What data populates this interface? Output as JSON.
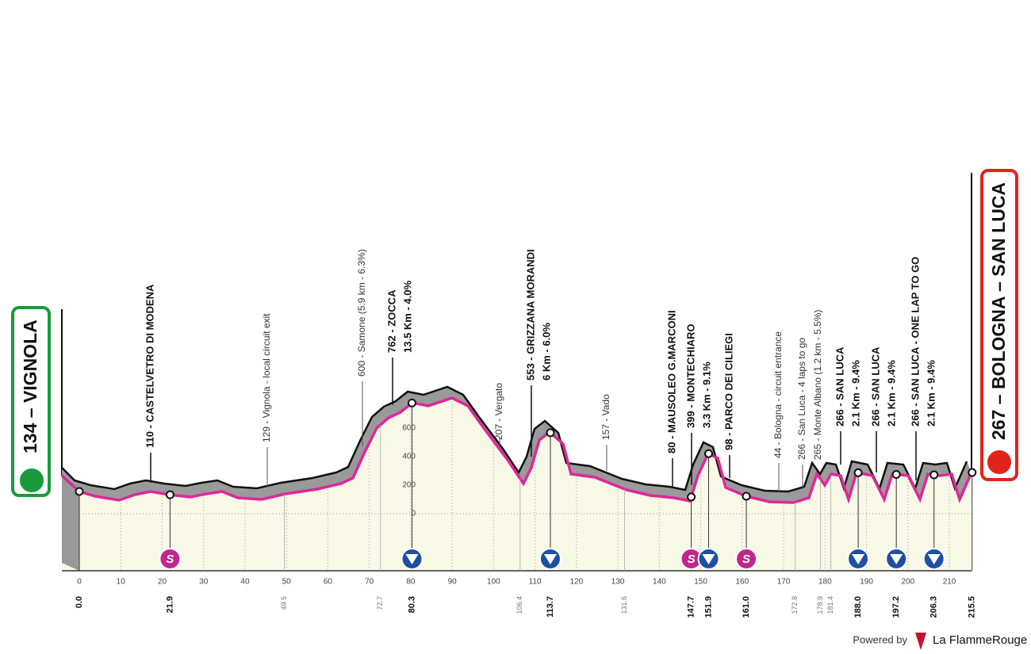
{
  "start": {
    "name": "134 – VIGNOLA"
  },
  "finish": {
    "name": "267 – BOLOGNA – SAN LUCA"
  },
  "km_ticks": [
    0,
    10,
    20,
    30,
    40,
    50,
    60,
    70,
    80,
    90,
    100,
    110,
    120,
    130,
    140,
    150,
    160,
    170,
    180,
    190,
    200,
    210
  ],
  "elevation_ticks": [
    0,
    200,
    400,
    600
  ],
  "distances": [
    {
      "km": "0.0",
      "style": "major"
    },
    {
      "km": "21.9",
      "style": "major",
      "marker": "sprint"
    },
    {
      "km": "49.5",
      "style": "minor"
    },
    {
      "km": "72.7",
      "style": "minor"
    },
    {
      "km": "80.3",
      "style": "major",
      "marker": "kom"
    },
    {
      "km": "106.4",
      "style": "minor"
    },
    {
      "km": "113.7",
      "style": "major",
      "marker": "kom"
    },
    {
      "km": "131.6",
      "style": "minor"
    },
    {
      "km": "147.7",
      "style": "major",
      "marker": "sprint"
    },
    {
      "km": "151.9",
      "style": "major",
      "marker": "kom"
    },
    {
      "km": "161.0",
      "style": "major",
      "marker": "sprint"
    },
    {
      "km": "172.8",
      "style": "minor"
    },
    {
      "km": "178.9",
      "style": "minor"
    },
    {
      "km": "181.4",
      "style": "minor"
    },
    {
      "km": "188.0",
      "style": "major",
      "marker": "kom"
    },
    {
      "km": "197.2",
      "style": "major",
      "marker": "kom"
    },
    {
      "km": "206.3",
      "style": "major",
      "marker": "kom"
    },
    {
      "km": "215.5",
      "style": "major"
    }
  ],
  "annotations": [
    {
      "lines": [
        "110 - CASTELVETRO DI MODENA"
      ],
      "style": "bold"
    },
    {
      "lines": [
        "129 - Vignola - local circuit exit"
      ],
      "style": "light"
    },
    {
      "lines": [
        "600 - Samone (5.9 km - 6.3%)"
      ],
      "style": "light"
    },
    {
      "lines": [
        "762 - ZOCCA",
        "13.5 Km - 4.0%"
      ],
      "style": "bold"
    },
    {
      "lines": [
        "207 - Vergato"
      ],
      "style": "light"
    },
    {
      "lines": [
        "553 - GRIZZANA MORANDI",
        "6 Km - 6.0%"
      ],
      "style": "bold"
    },
    {
      "lines": [
        "157 - Vado"
      ],
      "style": "light"
    },
    {
      "lines": [
        "80 - MAUSOLEO G.MARCONI"
      ],
      "style": "bold"
    },
    {
      "lines": [
        "399 - MONTECHIARO",
        "3.3 Km - 9.1%"
      ],
      "style": "bold"
    },
    {
      "lines": [
        "98 - PARCO DEI CILIEGI"
      ],
      "style": "bold"
    },
    {
      "lines": [
        "44 - Bologna - circuit entrance"
      ],
      "style": "light"
    },
    {
      "lines": [
        "266 - San Luca - 4 laps to go",
        "265 - Monte Albano (1.2 km - 5.5%)"
      ],
      "style": "light"
    },
    {
      "lines": [
        "266 - SAN LUCA",
        "2.1 Km - 9.4%"
      ],
      "style": "bold"
    },
    {
      "lines": [
        "266 - SAN LUCA",
        "2.1 Km - 9.4%"
      ],
      "style": "bold"
    },
    {
      "lines": [
        "266 - SAN LUCA - ONE LAP TO GO",
        "2.1 Km - 9.4%"
      ],
      "style": "bold"
    }
  ],
  "footer": {
    "powered": "Powered by",
    "brand": "La FlammeRouge"
  }
}
